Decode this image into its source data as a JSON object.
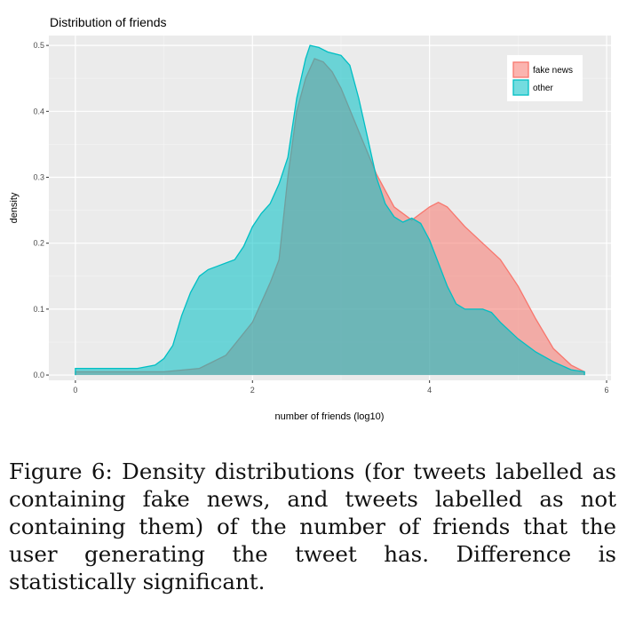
{
  "chart_data": {
    "type": "area",
    "title": "Distribution of friends",
    "xlabel": "number of friends (log10)",
    "ylabel": "density",
    "xlim": [
      -0.3,
      6.05
    ],
    "ylim": [
      -0.008,
      0.515
    ],
    "x_ticks": [
      0,
      2,
      4,
      6
    ],
    "y_ticks": [
      0.0,
      0.1,
      0.2,
      0.3,
      0.4,
      0.5
    ],
    "y_tick_labels": [
      "0.0",
      "0.1",
      "0.2",
      "0.3",
      "0.4",
      "0.5"
    ],
    "grid": true,
    "legend_position": "top-right",
    "series": [
      {
        "name": "fake news",
        "color": "#F8766D",
        "points": [
          [
            0,
            0.005
          ],
          [
            0.5,
            0.005
          ],
          [
            1.0,
            0.005
          ],
          [
            1.4,
            0.01
          ],
          [
            1.7,
            0.03
          ],
          [
            2.0,
            0.08
          ],
          [
            2.2,
            0.14
          ],
          [
            2.3,
            0.175
          ],
          [
            2.4,
            0.3
          ],
          [
            2.5,
            0.4
          ],
          [
            2.6,
            0.45
          ],
          [
            2.7,
            0.48
          ],
          [
            2.8,
            0.475
          ],
          [
            2.9,
            0.46
          ],
          [
            3.0,
            0.435
          ],
          [
            3.2,
            0.37
          ],
          [
            3.4,
            0.305
          ],
          [
            3.6,
            0.255
          ],
          [
            3.8,
            0.235
          ],
          [
            4.0,
            0.255
          ],
          [
            4.1,
            0.262
          ],
          [
            4.2,
            0.255
          ],
          [
            4.4,
            0.225
          ],
          [
            4.6,
            0.2
          ],
          [
            4.8,
            0.175
          ],
          [
            5.0,
            0.135
          ],
          [
            5.2,
            0.085
          ],
          [
            5.4,
            0.04
          ],
          [
            5.6,
            0.015
          ],
          [
            5.75,
            0.005
          ]
        ]
      },
      {
        "name": "other",
        "color": "#00BFC4",
        "points": [
          [
            0,
            0.01
          ],
          [
            0.3,
            0.01
          ],
          [
            0.7,
            0.01
          ],
          [
            0.9,
            0.015
          ],
          [
            1.0,
            0.025
          ],
          [
            1.1,
            0.045
          ],
          [
            1.2,
            0.09
          ],
          [
            1.3,
            0.125
          ],
          [
            1.4,
            0.15
          ],
          [
            1.5,
            0.16
          ],
          [
            1.6,
            0.165
          ],
          [
            1.8,
            0.175
          ],
          [
            1.9,
            0.195
          ],
          [
            2.0,
            0.225
          ],
          [
            2.1,
            0.245
          ],
          [
            2.2,
            0.26
          ],
          [
            2.3,
            0.29
          ],
          [
            2.4,
            0.33
          ],
          [
            2.5,
            0.42
          ],
          [
            2.6,
            0.48
          ],
          [
            2.65,
            0.5
          ],
          [
            2.75,
            0.497
          ],
          [
            2.85,
            0.49
          ],
          [
            3.0,
            0.485
          ],
          [
            3.1,
            0.47
          ],
          [
            3.2,
            0.42
          ],
          [
            3.3,
            0.36
          ],
          [
            3.4,
            0.3
          ],
          [
            3.5,
            0.26
          ],
          [
            3.6,
            0.24
          ],
          [
            3.7,
            0.232
          ],
          [
            3.8,
            0.238
          ],
          [
            3.9,
            0.23
          ],
          [
            4.0,
            0.205
          ],
          [
            4.1,
            0.17
          ],
          [
            4.2,
            0.135
          ],
          [
            4.3,
            0.108
          ],
          [
            4.4,
            0.1
          ],
          [
            4.5,
            0.1
          ],
          [
            4.6,
            0.1
          ],
          [
            4.7,
            0.095
          ],
          [
            4.8,
            0.08
          ],
          [
            5.0,
            0.055
          ],
          [
            5.2,
            0.035
          ],
          [
            5.4,
            0.02
          ],
          [
            5.6,
            0.008
          ],
          [
            5.75,
            0.005
          ]
        ]
      }
    ]
  },
  "caption": "Figure 6: Density distributions (for tweets labelled as containing fake news, and tweets labelled as not containing them) of the number of friends that the user generating the tweet has. Difference is statistically significant."
}
